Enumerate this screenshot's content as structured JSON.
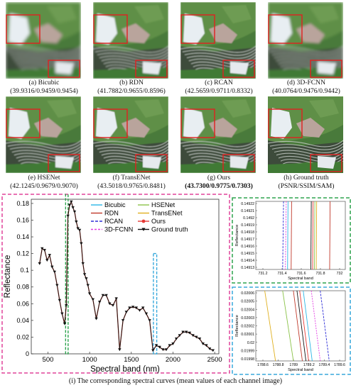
{
  "panels": [
    {
      "label": "(a) Bicubic",
      "metrics": "(39.9316/0.9459/0.9454)",
      "bold": false
    },
    {
      "label": "(b) RDN",
      "metrics": "(41.7882/0.9655/0.8596)",
      "bold": false
    },
    {
      "label": "(c) RCAN",
      "metrics": "(42.5659/0.9711/0.8332)",
      "bold": false
    },
    {
      "label": "(d) 3D-FCNN",
      "metrics": "(40.0764/0.9476/0.9442)",
      "bold": false
    },
    {
      "label": "(e) HSENet",
      "metrics": "(42.1245/0.9679/0.9070)",
      "bold": false
    },
    {
      "label": "(f) TransENet",
      "metrics": "(43.5018/0.9765/0.8481)",
      "bold": false
    },
    {
      "label": "(g) Ours",
      "metrics": "(43.7300/0.9775/0.7303)",
      "bold": true
    },
    {
      "label": "(h) Ground truth",
      "metrics": "(PSNR/SSIM/SAM)",
      "bold": false
    }
  ],
  "colors": {
    "bicubic": "#2ab6e6",
    "rdn": "#c0392b",
    "rcan": "#2b2bd6",
    "fcnn": "#e23ce2",
    "hsenet": "#8bc34a",
    "transenet": "#e0b020",
    "ours": "#e53935",
    "gt": "#111111",
    "zoom_green": "#2ea44f",
    "zoom_blue": "#39a9dc",
    "frame_pink": "#e0449a",
    "box_red": "#e02020"
  },
  "chart_data": [
    {
      "type": "line",
      "title": "",
      "xlabel": "Spectral band (nm)",
      "ylabel": "Reflectance",
      "xlim": [
        300,
        2550
      ],
      "ylim": [
        0,
        0.185
      ],
      "xticks": [
        "500",
        "1000",
        "1500",
        "2000",
        "2500"
      ],
      "yticks": [
        "0",
        "0.02",
        "0.04",
        "0.06",
        "0.08",
        "0.1",
        "0.12",
        "0.14",
        "0.16",
        "0.18"
      ],
      "legend": [
        "Bicubic",
        "HSENet",
        "RDN",
        "TransENet",
        "RCAN",
        "Ours",
        "3D-FCNN",
        "Ground truth"
      ],
      "x": [
        400,
        430,
        460,
        490,
        520,
        550,
        580,
        610,
        640,
        670,
        700,
        720,
        740,
        760,
        780,
        800,
        820,
        840,
        860,
        880,
        900,
        920,
        940,
        960,
        980,
        1000,
        1040,
        1080,
        1120,
        1160,
        1200,
        1240,
        1280,
        1320,
        1360,
        1400,
        1440,
        1480,
        1520,
        1560,
        1600,
        1640,
        1680,
        1720,
        1760,
        1800,
        1840,
        1880,
        1920,
        1960,
        2000,
        2040,
        2080,
        2120,
        2160,
        2200,
        2240,
        2280,
        2320,
        2360,
        2400,
        2440,
        2480
      ],
      "series": [
        {
          "name": "Ground truth",
          "values": [
            0.108,
            0.126,
            0.124,
            0.112,
            0.118,
            0.104,
            0.098,
            0.082,
            0.064,
            0.048,
            0.036,
            0.058,
            0.165,
            0.178,
            0.182,
            0.175,
            0.17,
            0.158,
            0.15,
            0.148,
            0.132,
            0.108,
            0.095,
            0.09,
            0.082,
            0.072,
            0.065,
            0.042,
            0.062,
            0.07,
            0.07,
            0.06,
            0.058,
            0.066,
            0.005,
            0.04,
            0.05,
            0.055,
            0.056,
            0.055,
            0.052,
            0.055,
            0.048,
            0.04,
            0.004,
            0.01,
            0.008,
            0.005,
            0.005,
            0.01,
            0.012,
            0.018,
            0.022,
            0.026,
            0.026,
            0.025,
            0.022,
            0.02,
            0.018,
            0.012,
            0.01,
            0.006,
            0.004
          ]
        }
      ]
    },
    {
      "type": "line",
      "title": "",
      "xlabel": "Spectral band",
      "ylabel": "Reflectance",
      "xticks": [
        "731.2",
        "731.4",
        "731.6",
        "731.8",
        "732"
      ],
      "yticks": [
        "0.14922",
        "0.14921",
        "0.1492",
        "0.14919",
        "0.14918",
        "0.14917",
        "0.14916",
        "0.14915",
        "0.14914",
        "0.14913"
      ]
    },
    {
      "type": "line",
      "title": "",
      "xlabel": "Spectral band",
      "ylabel": "Reflectance",
      "xticks": [
        "1788.6",
        "1788.8",
        "1789",
        "1789.2",
        "1789.4",
        "1789.6"
      ],
      "yticks": [
        "0.02006",
        "0.02005",
        "0.02004",
        "0.02003",
        "0.02002",
        "0.02001",
        "0.02",
        "0.01999",
        "0.01998"
      ]
    }
  ],
  "caption": "(i) The corresponding spectral curves (mean values of each channel image)"
}
